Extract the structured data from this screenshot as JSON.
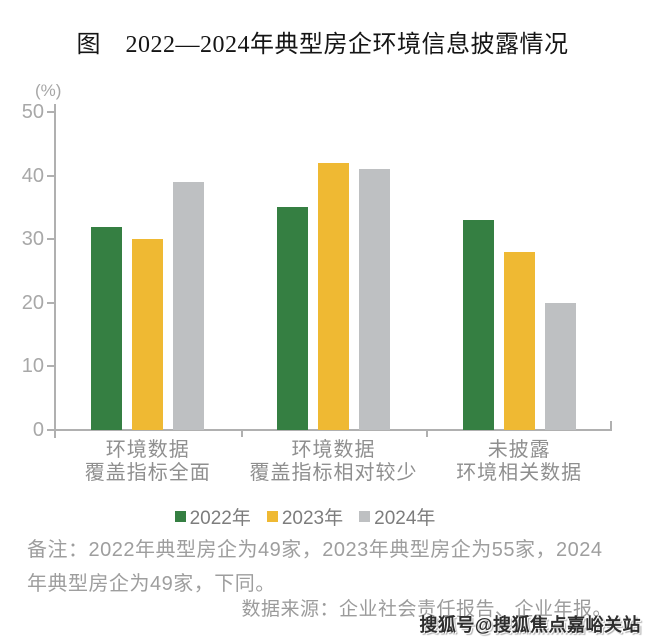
{
  "chart_data": {
    "type": "bar",
    "title": "图　2022—2024年典型房企环境信息披露情况",
    "unit_label": "(%)",
    "categories": [
      [
        "环境数据",
        "覆盖指标全面"
      ],
      [
        "环境数据",
        "覆盖指标相对较少"
      ],
      [
        "未披露",
        "环境相关数据"
      ]
    ],
    "series": [
      {
        "name": "2022年",
        "color": "#357F42",
        "values": [
          32,
          35,
          33
        ]
      },
      {
        "name": "2023年",
        "color": "#EFB933",
        "values": [
          30,
          42,
          28
        ]
      },
      {
        "name": "2024年",
        "color": "#BEC0C2",
        "values": [
          39,
          41,
          20
        ]
      }
    ],
    "y_ticks": [
      0,
      10,
      20,
      30,
      40,
      50
    ],
    "ylim": [
      0,
      50
    ],
    "grid": false,
    "legend_position": "bottom",
    "axis_color": "#b0b0b0",
    "tick_label_color": "#a8a8a8"
  },
  "footnote": {
    "line1": "备注：2022年典型房企为49家，2023年典型房企为55家，2024",
    "line2": "年典型房企为49家，下同。"
  },
  "source": "数据来源：企业社会责任报告、企业年报。",
  "watermark": "搜狐号@搜狐焦点嘉峪关站"
}
